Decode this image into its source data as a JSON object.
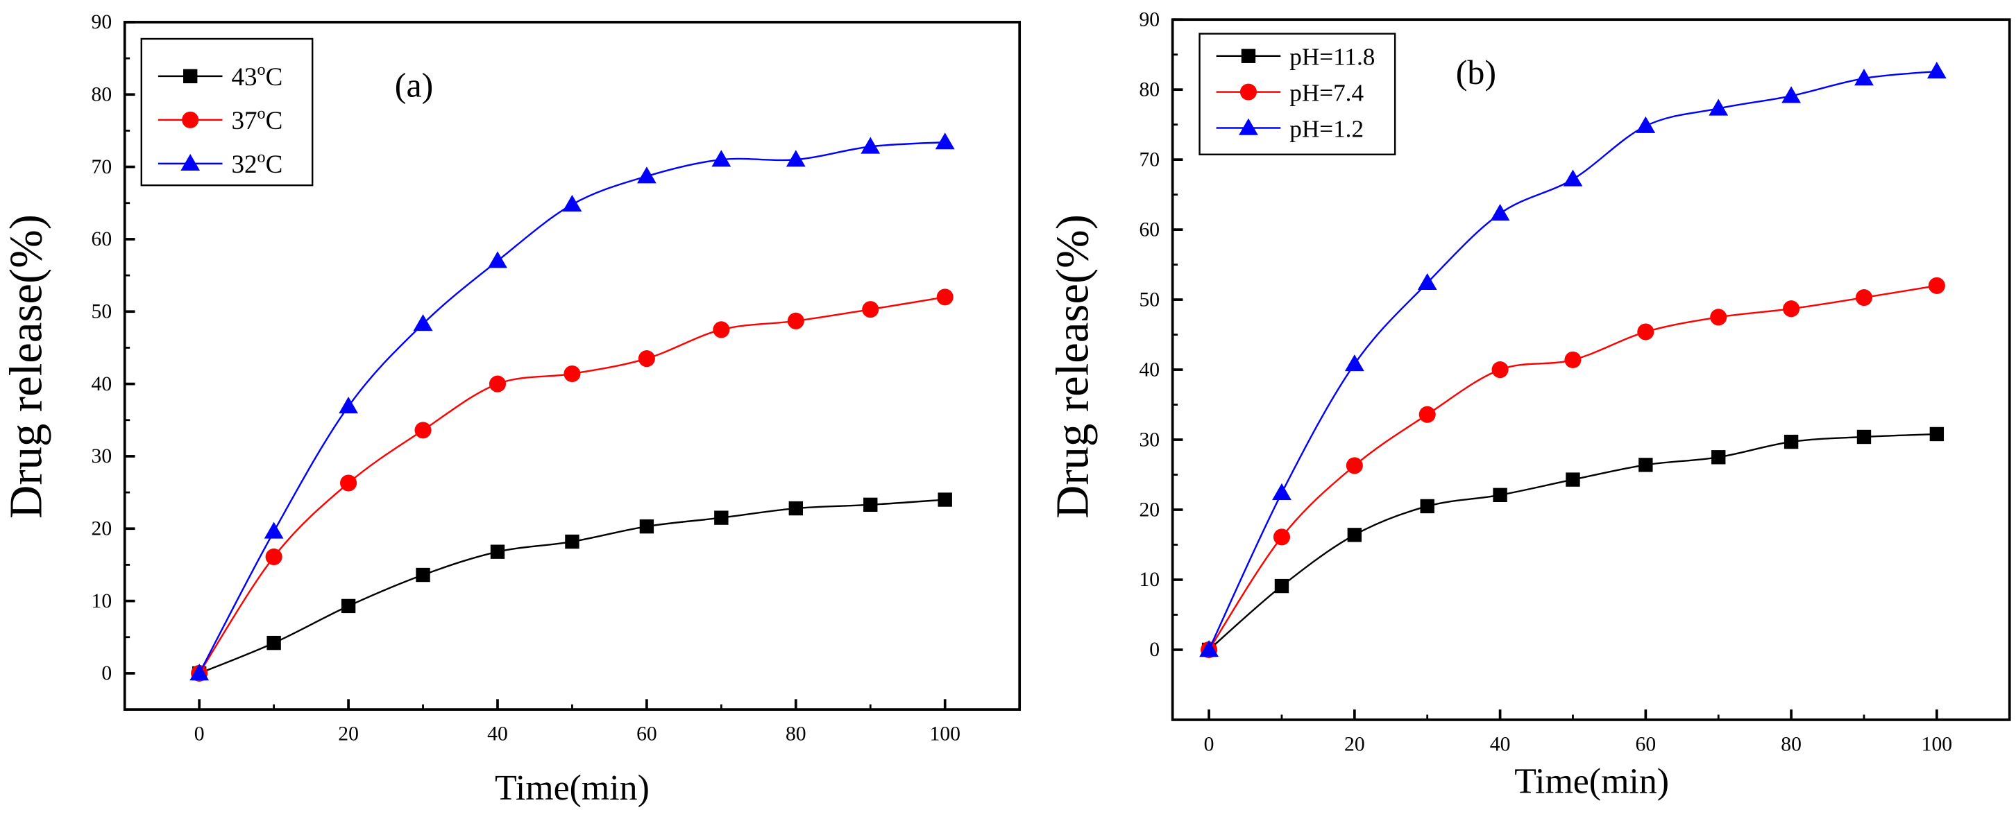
{
  "chart_data": [
    {
      "type": "line",
      "panel_label": "(a)",
      "xlabel": "Time(min)",
      "ylabel": "Drug release(%)",
      "xlim": [
        -10,
        110
      ],
      "ylim": [
        -5,
        90
      ],
      "xticks": [
        0,
        20,
        40,
        60,
        80,
        100
      ],
      "yticks": [
        0,
        10,
        20,
        30,
        40,
        50,
        60,
        70,
        80,
        90
      ],
      "grid": false,
      "legend_position": "top-left",
      "x": [
        0,
        10,
        20,
        30,
        40,
        50,
        60,
        70,
        80,
        90,
        100
      ],
      "series": [
        {
          "name": "43",
          "unit_sup": "o",
          "unit": "C",
          "color": "#000000",
          "marker": "square",
          "values": [
            0,
            4.2,
            9.3,
            13.6,
            16.8,
            18.2,
            20.3,
            21.5,
            22.8,
            23.3,
            24.0
          ]
        },
        {
          "name": "37",
          "unit_sup": "o",
          "unit": "C",
          "color": "#ff0000",
          "marker": "circle",
          "values": [
            0,
            16.1,
            26.3,
            33.6,
            40.0,
            41.4,
            43.5,
            47.5,
            48.7,
            50.3,
            52.0
          ]
        },
        {
          "name": "32",
          "unit_sup": "o",
          "unit": "C",
          "color": "#0000ff",
          "marker": "triangle",
          "values": [
            0,
            19.6,
            36.9,
            48.3,
            57.0,
            64.8,
            68.7,
            71.0,
            71.0,
            72.8,
            73.4
          ]
        }
      ]
    },
    {
      "type": "line",
      "panel_label": "(b)",
      "xlabel": "Time(min)",
      "ylabel": "Drug release(%)",
      "xlim": [
        -5,
        110
      ],
      "ylim": [
        -10,
        90
      ],
      "xticks": [
        0,
        20,
        40,
        60,
        80,
        100
      ],
      "yticks": [
        0,
        10,
        20,
        30,
        40,
        50,
        60,
        70,
        80,
        90
      ],
      "grid": false,
      "legend_position": "top-left",
      "x": [
        0,
        10,
        20,
        30,
        40,
        50,
        60,
        70,
        80,
        90,
        100
      ],
      "series": [
        {
          "name": "pH=11.8",
          "color": "#000000",
          "marker": "square",
          "values": [
            0,
            9.1,
            16.4,
            20.5,
            22.1,
            24.3,
            26.4,
            27.5,
            29.7,
            30.4,
            30.8
          ]
        },
        {
          "name": "pH=7.4",
          "color": "#ff0000",
          "marker": "circle",
          "values": [
            0,
            16.1,
            26.3,
            33.6,
            40.0,
            41.4,
            45.4,
            47.5,
            48.7,
            50.3,
            52.0
          ]
        },
        {
          "name": "pH=1.2",
          "color": "#0000ff",
          "marker": "triangle",
          "values": [
            0,
            22.4,
            40.8,
            52.4,
            62.3,
            67.2,
            74.8,
            77.3,
            79.1,
            81.6,
            82.6
          ]
        }
      ]
    }
  ]
}
